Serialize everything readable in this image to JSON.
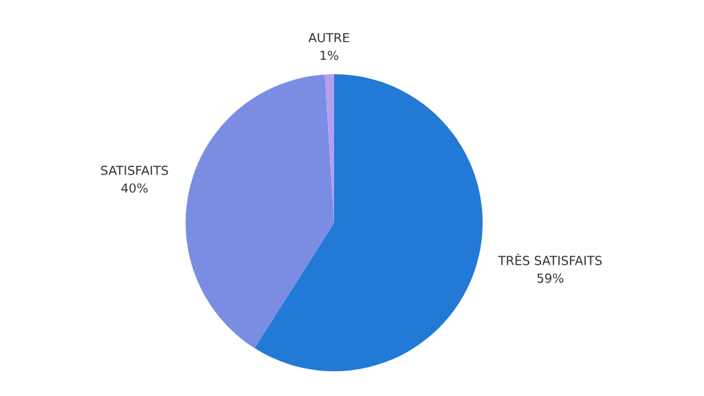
{
  "chart_data": {
    "type": "pie",
    "categories": [
      "TRÈS SATISFAITS",
      "SATISFAITS",
      "AUTRE"
    ],
    "values": [
      59,
      40,
      1
    ],
    "value_labels": [
      "59%",
      "40%",
      "1%"
    ],
    "colors": [
      "#2279d6",
      "#7b8ce3",
      "#b39ef0"
    ]
  }
}
